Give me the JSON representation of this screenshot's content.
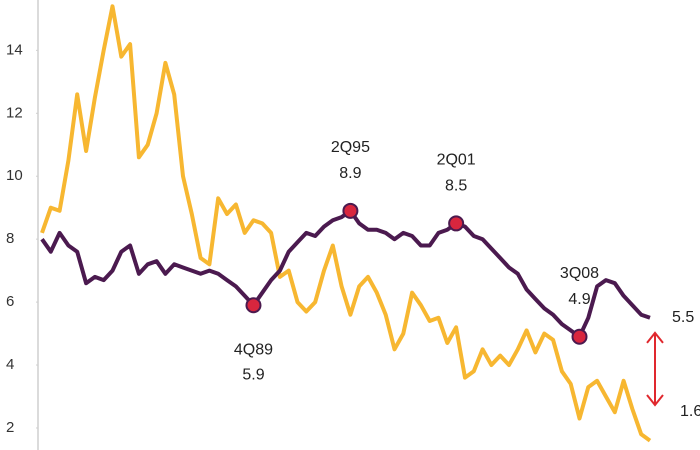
{
  "chart_data": {
    "type": "line",
    "categories": [
      null,
      null,
      null,
      null,
      null,
      null,
      null,
      null,
      null,
      null,
      null,
      null,
      null,
      null,
      null,
      null,
      null,
      null,
      null,
      null,
      null,
      null,
      null,
      null,
      "4Q89",
      null,
      null,
      null,
      null,
      null,
      null,
      null,
      null,
      null,
      null,
      "2Q95",
      null,
      null,
      null,
      null,
      null,
      null,
      null,
      null,
      null,
      null,
      null,
      "2Q01",
      null,
      null,
      null,
      null,
      null,
      null,
      null,
      null,
      null,
      null,
      null,
      null,
      null,
      "3Q08",
      null,
      null,
      null,
      null,
      null,
      null,
      null,
      null
    ],
    "series": [
      {
        "color": "#4b1a4f",
        "values": [
          8.0,
          7.6,
          8.2,
          7.8,
          7.6,
          6.6,
          6.8,
          6.7,
          7.0,
          7.6,
          7.8,
          6.9,
          7.2,
          7.3,
          6.9,
          7.2,
          7.1,
          7.0,
          6.9,
          7.0,
          6.9,
          6.7,
          6.5,
          6.2,
          5.9,
          6.3,
          6.7,
          7.0,
          7.6,
          7.9,
          8.2,
          8.1,
          8.4,
          8.6,
          8.7,
          8.9,
          8.5,
          8.3,
          8.3,
          8.2,
          8.0,
          8.2,
          8.1,
          7.8,
          7.8,
          8.2,
          8.3,
          8.5,
          8.4,
          8.1,
          8.0,
          7.7,
          7.4,
          7.1,
          6.9,
          6.4,
          6.1,
          5.8,
          5.6,
          5.3,
          5.1,
          4.9,
          5.5,
          6.5,
          6.7,
          6.6,
          6.2,
          5.9,
          5.6,
          5.5
        ]
      },
      {
        "color": "#f7b731",
        "values": [
          8.2,
          9.0,
          8.9,
          10.5,
          12.6,
          10.8,
          12.5,
          14.0,
          15.4,
          13.8,
          14.2,
          10.6,
          11.0,
          12.0,
          13.6,
          12.6,
          10.0,
          8.8,
          7.4,
          7.2,
          9.3,
          8.8,
          9.1,
          8.2,
          8.6,
          8.5,
          8.2,
          6.8,
          7.0,
          6.0,
          5.7,
          6.0,
          7.0,
          7.8,
          6.5,
          5.6,
          6.5,
          6.8,
          6.3,
          5.6,
          4.5,
          5.0,
          6.3,
          5.9,
          5.4,
          5.5,
          4.7,
          5.2,
          3.6,
          3.8,
          4.5,
          4.0,
          4.3,
          4.0,
          4.5,
          5.1,
          4.4,
          5.0,
          4.8,
          3.8,
          3.4,
          2.3,
          3.3,
          3.5,
          3.0,
          2.5,
          3.5,
          2.6,
          1.8,
          1.6
        ]
      }
    ],
    "ylim": [
      1.3,
      15.6
    ],
    "yticks": [
      2,
      4,
      6,
      8,
      10,
      12,
      14
    ],
    "grid": false
  }
}
